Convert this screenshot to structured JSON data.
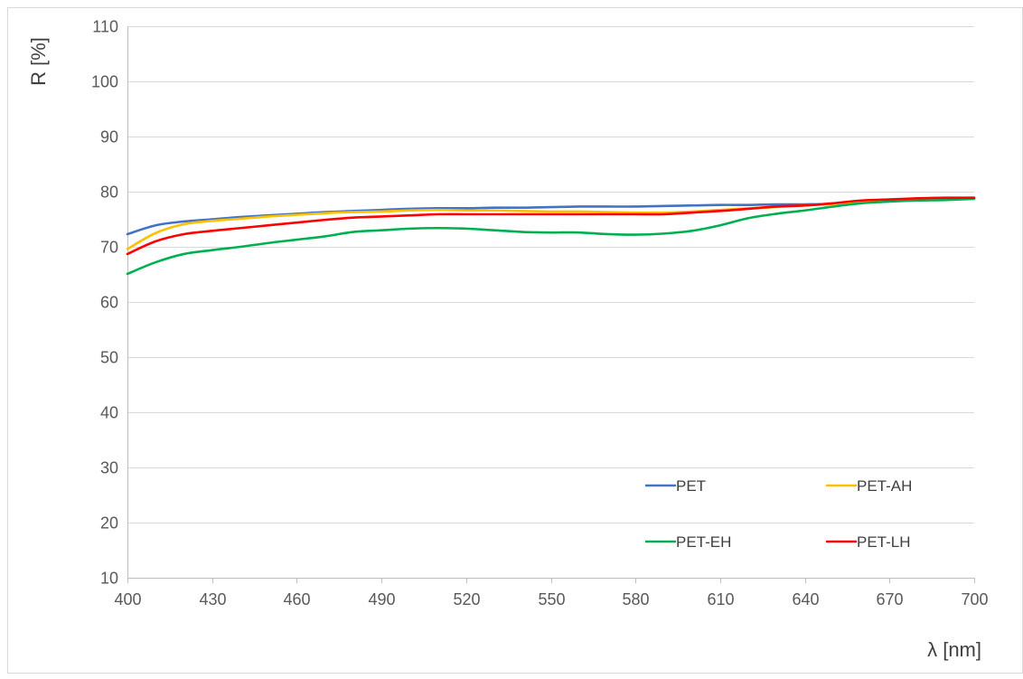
{
  "chart_data": {
    "type": "line",
    "title": "",
    "xlabel": "λ [nm]",
    "ylabel": "R [%]",
    "xlim": [
      400,
      700
    ],
    "ylim": [
      10,
      110
    ],
    "x_ticks": [
      400,
      430,
      460,
      490,
      520,
      550,
      580,
      610,
      640,
      670,
      700
    ],
    "y_ticks": [
      10,
      20,
      30,
      40,
      50,
      60,
      70,
      80,
      90,
      100,
      110
    ],
    "grid": "horizontal",
    "legend_position": "bottom-right",
    "x": [
      400,
      410,
      420,
      430,
      440,
      450,
      460,
      470,
      480,
      490,
      500,
      510,
      520,
      530,
      540,
      550,
      560,
      570,
      580,
      590,
      600,
      610,
      620,
      630,
      640,
      650,
      660,
      670,
      680,
      690,
      700
    ],
    "series": [
      {
        "name": "PET",
        "color": "#4472C4",
        "values": [
          72.3,
          73.9,
          74.6,
          75.0,
          75.4,
          75.7,
          76.0,
          76.3,
          76.5,
          76.7,
          76.9,
          77.0,
          77.0,
          77.1,
          77.1,
          77.2,
          77.3,
          77.3,
          77.3,
          77.4,
          77.5,
          77.6,
          77.6,
          77.7,
          77.7,
          77.8,
          78.2,
          78.5,
          78.7,
          78.8,
          78.8
        ]
      },
      {
        "name": "PET-AH",
        "color": "#FFC000",
        "values": [
          69.6,
          72.5,
          74.1,
          74.7,
          75.1,
          75.5,
          75.8,
          76.1,
          76.3,
          76.4,
          76.6,
          76.7,
          76.6,
          76.6,
          76.5,
          76.4,
          76.4,
          76.3,
          76.2,
          76.2,
          76.4,
          76.7,
          77.0,
          77.2,
          77.5,
          77.8,
          78.2,
          78.5,
          78.7,
          78.8,
          78.9
        ]
      },
      {
        "name": "PET-EH",
        "color": "#00B050",
        "values": [
          65.1,
          67.2,
          68.7,
          69.4,
          70.0,
          70.7,
          71.3,
          71.9,
          72.7,
          73.0,
          73.3,
          73.4,
          73.3,
          73.0,
          72.7,
          72.6,
          72.6,
          72.3,
          72.2,
          72.4,
          72.9,
          73.9,
          75.2,
          76.0,
          76.6,
          77.3,
          77.9,
          78.2,
          78.4,
          78.5,
          78.7
        ]
      },
      {
        "name": "PET-LH",
        "color": "#FF0000",
        "values": [
          68.7,
          71.0,
          72.3,
          72.9,
          73.4,
          73.9,
          74.4,
          74.9,
          75.3,
          75.5,
          75.7,
          75.9,
          75.9,
          75.9,
          75.9,
          75.9,
          75.9,
          75.9,
          75.9,
          75.9,
          76.2,
          76.5,
          76.9,
          77.3,
          77.5,
          77.9,
          78.4,
          78.6,
          78.8,
          78.9,
          78.9
        ]
      }
    ]
  }
}
